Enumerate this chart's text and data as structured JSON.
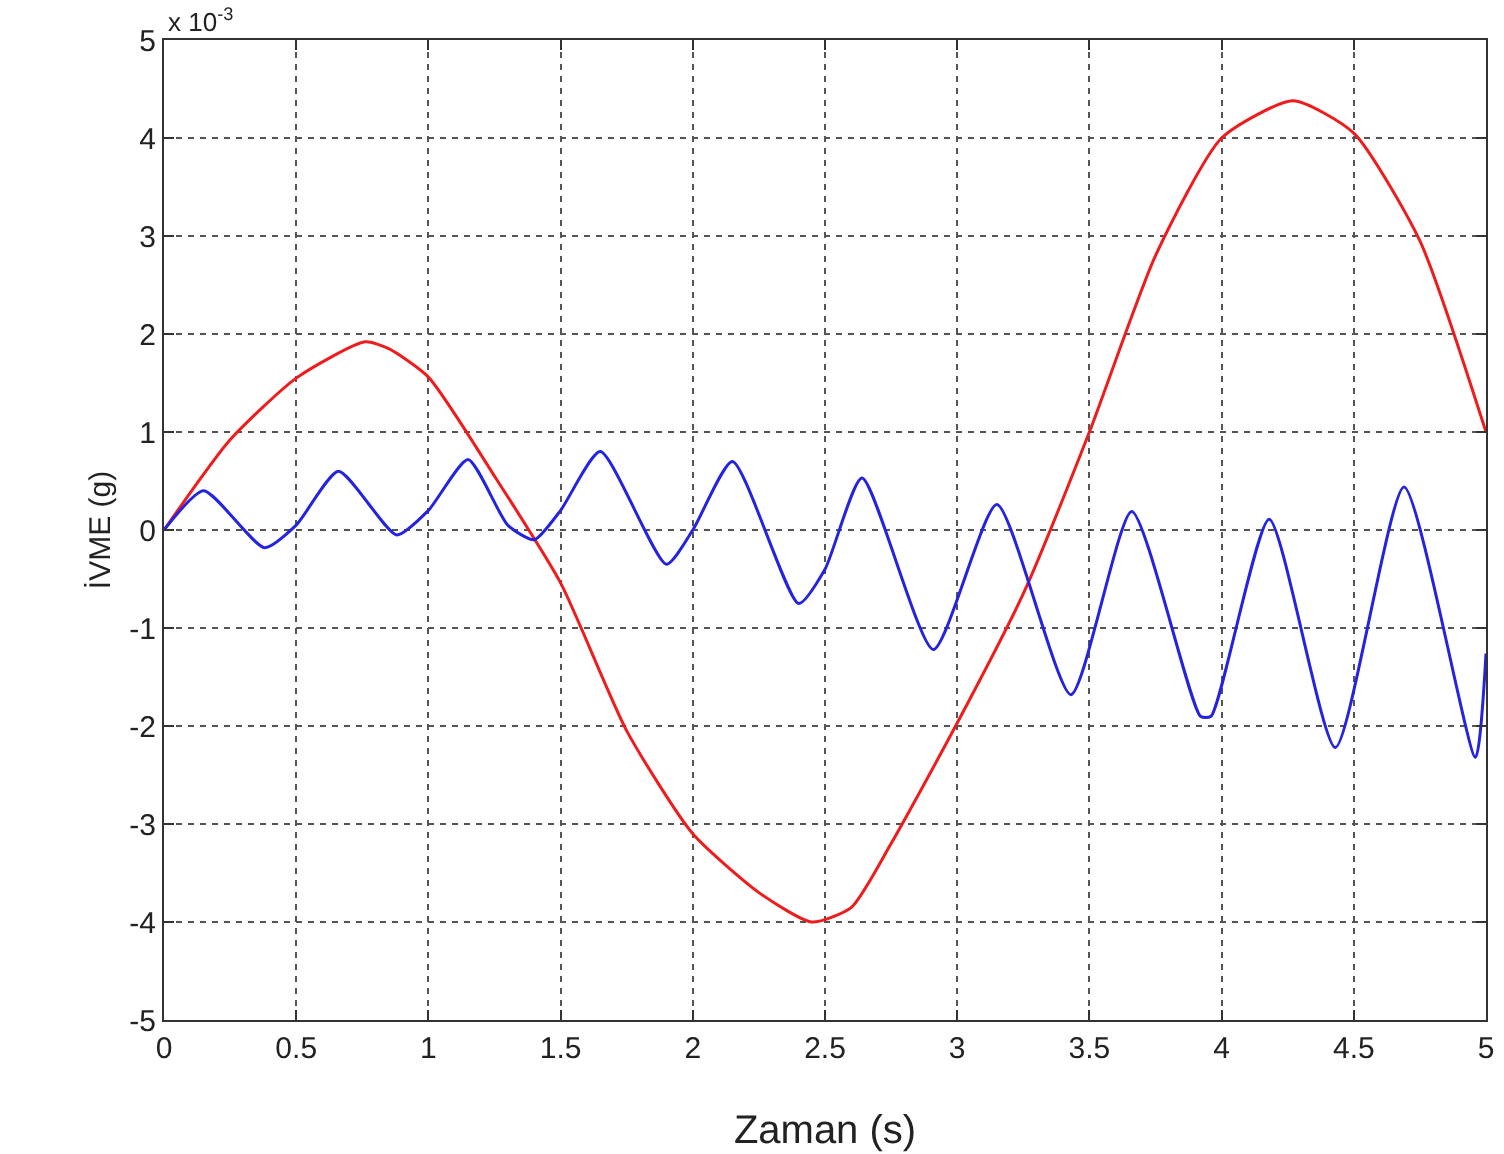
{
  "chart_data": {
    "type": "line",
    "xlabel": "Zaman (s)",
    "ylabel": "İVME (g)",
    "annotations": [
      "x 10$^{-3}$"
    ],
    "xlim": [
      0,
      5
    ],
    "xticks": [
      0,
      0.5,
      1,
      1.5,
      2,
      2.5,
      3,
      3.5,
      4,
      4.5,
      5
    ],
    "ylim": [
      -5,
      5
    ],
    "yticks": [
      -5,
      -4,
      -3,
      -2,
      -1,
      0,
      1,
      2,
      3,
      4,
      5
    ],
    "grid": true,
    "line_style": "solid",
    "marker": "none",
    "legend": false,
    "series": [
      {
        "color": "#ee1c1c",
        "x": [
          0,
          0.25,
          0.5,
          0.76,
          0.85,
          1,
          1.25,
          1.5,
          1.75,
          2,
          2.25,
          2.45,
          2.6,
          2.75,
          3,
          3.25,
          3.5,
          3.75,
          4,
          4.27,
          4.5,
          4.75,
          5
        ],
        "values": [
          0,
          0.92,
          1.55,
          1.92,
          1.85,
          1.56,
          0.55,
          -0.54,
          -2.05,
          -3.1,
          -3.7,
          -4.0,
          -3.85,
          -3.2,
          -1.97,
          -0.65,
          1.0,
          2.8,
          4.0,
          4.38,
          4.05,
          2.95,
          1.0
        ]
      },
      {
        "color": "#2323e0",
        "x": [
          0,
          0.15,
          0.38,
          0.5,
          0.66,
          0.88,
          1,
          1.15,
          1.3,
          1.4,
          1.5,
          1.65,
          1.9,
          2,
          2.15,
          2.4,
          2.5,
          2.64,
          2.91,
          3.15,
          3.43,
          3.66,
          3.92,
          3.96,
          4.18,
          4.43,
          4.69,
          4.96,
          5
        ],
        "values": [
          0,
          0.4,
          -0.18,
          0.05,
          0.6,
          -0.05,
          0.2,
          0.72,
          0.05,
          -0.1,
          0.2,
          0.8,
          -0.35,
          0,
          0.7,
          -0.75,
          -0.4,
          0.53,
          -1.22,
          0.26,
          -1.68,
          0.19,
          -1.9,
          -1.9,
          0.11,
          -2.22,
          0.44,
          -2.32,
          -1.26
        ]
      }
    ]
  }
}
